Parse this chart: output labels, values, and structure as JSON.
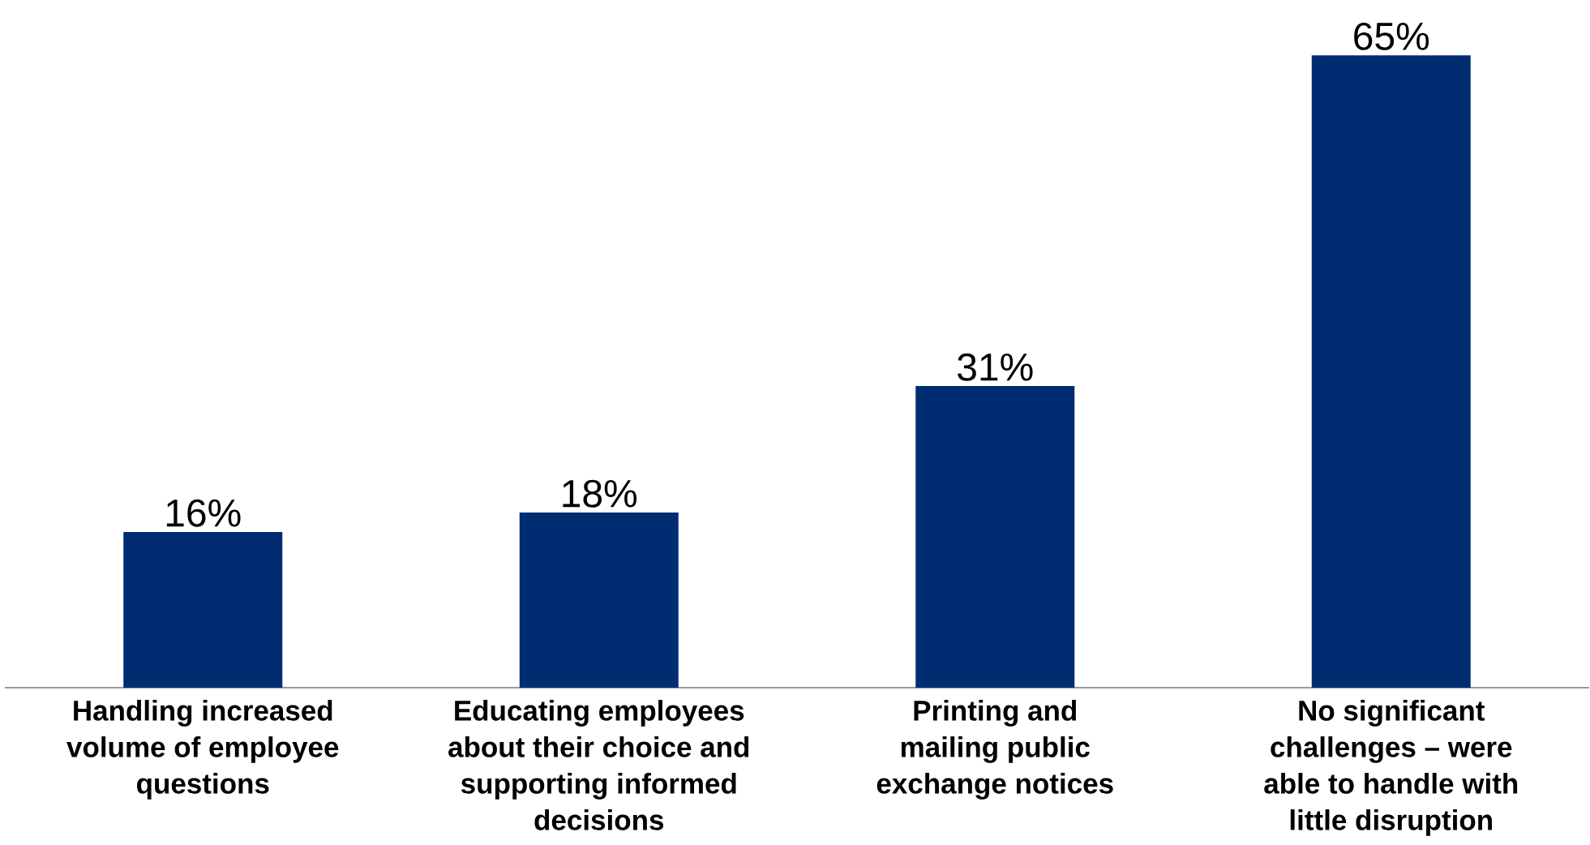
{
  "chart_data": {
    "type": "bar",
    "categories": [
      "Handling increased volume of employee questions",
      "Educating employees about their choice and supporting informed decisions",
      "Printing and mailing public exchange notices",
      "No significant challenges – were able to handle with little disruption"
    ],
    "values": [
      16,
      18,
      31,
      65
    ],
    "color": "#002d72",
    "value_labels": [
      "16%",
      "18%",
      "31%",
      "65%"
    ],
    "tick_labels": "x",
    "grid": false
  }
}
